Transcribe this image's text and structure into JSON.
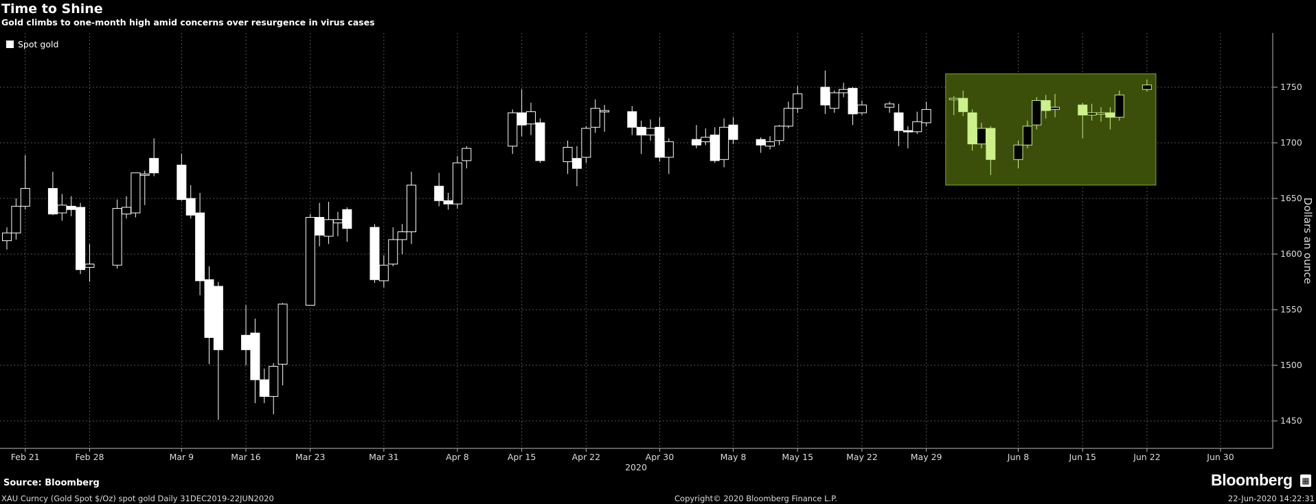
{
  "chart_data": {
    "type": "candlestick",
    "title": "Time to Shine",
    "subtitle": "Gold climbs to one-month high amid concerns over resurgence in virus cases",
    "ylabel": "Dollars an ounce",
    "ylim": [
      1425,
      1790
    ],
    "yticks": [
      1450,
      1500,
      1550,
      1600,
      1650,
      1700,
      1750
    ],
    "x_year_label": "2020",
    "x_tick_labels": [
      "Feb 21",
      "Feb 28",
      "Mar 9",
      "Mar 16",
      "Mar 23",
      "Mar 31",
      "Apr 8",
      "Apr 15",
      "Apr 22",
      "Apr 30",
      "May 8",
      "May 15",
      "May 22",
      "May 29",
      "Jun 8",
      "Jun 15",
      "Jun 22",
      "Jun 30"
    ],
    "x_tick_dates": [
      "2020-02-21",
      "2020-02-28",
      "2020-03-09",
      "2020-03-16",
      "2020-03-23",
      "2020-03-31",
      "2020-04-08",
      "2020-04-15",
      "2020-04-22",
      "2020-04-30",
      "2020-05-08",
      "2020-05-15",
      "2020-05-22",
      "2020-05-29",
      "2020-06-08",
      "2020-06-15",
      "2020-06-22",
      "2020-06-30"
    ],
    "series": [
      {
        "name": "Spot gold",
        "candles": [
          {
            "date": "2020-02-19",
            "open": 1612,
            "high": 1624,
            "low": 1604,
            "close": 1619
          },
          {
            "date": "2020-02-20",
            "open": 1619,
            "high": 1650,
            "low": 1613,
            "close": 1643
          },
          {
            "date": "2020-02-21",
            "open": 1643,
            "high": 1689,
            "low": 1640,
            "close": 1659
          },
          {
            "date": "2020-02-24",
            "open": 1659,
            "high": 1674,
            "low": 1635,
            "close": 1636
          },
          {
            "date": "2020-02-25",
            "open": 1637,
            "high": 1654,
            "low": 1630,
            "close": 1644
          },
          {
            "date": "2020-02-26",
            "open": 1643,
            "high": 1652,
            "low": 1634,
            "close": 1640
          },
          {
            "date": "2020-02-27",
            "open": 1642,
            "high": 1646,
            "low": 1582,
            "close": 1586
          },
          {
            "date": "2020-02-28",
            "open": 1588,
            "high": 1609,
            "low": 1575,
            "close": 1591
          },
          {
            "date": "2020-03-02",
            "open": 1590,
            "high": 1649,
            "low": 1587,
            "close": 1641
          },
          {
            "date": "2020-03-03",
            "open": 1636,
            "high": 1652,
            "low": 1632,
            "close": 1642
          },
          {
            "date": "2020-03-04",
            "open": 1637,
            "high": 1672,
            "low": 1633,
            "close": 1673
          },
          {
            "date": "2020-03-05",
            "open": 1672,
            "high": 1675,
            "low": 1644,
            "close": 1672
          },
          {
            "date": "2020-03-06",
            "open": 1686,
            "high": 1704,
            "low": 1670,
            "close": 1673
          },
          {
            "date": "2020-03-09",
            "open": 1680,
            "high": 1690,
            "low": 1648,
            "close": 1649
          },
          {
            "date": "2020-03-10",
            "open": 1650,
            "high": 1662,
            "low": 1632,
            "close": 1635
          },
          {
            "date": "2020-03-11",
            "open": 1637,
            "high": 1655,
            "low": 1563,
            "close": 1576
          },
          {
            "date": "2020-03-12",
            "open": 1577,
            "high": 1589,
            "low": 1501,
            "close": 1525
          },
          {
            "date": "2020-03-13",
            "open": 1571,
            "high": 1575,
            "low": 1451,
            "close": 1514
          },
          {
            "date": "2020-03-16",
            "open": 1527,
            "high": 1554,
            "low": 1500,
            "close": 1514
          },
          {
            "date": "2020-03-17",
            "open": 1529,
            "high": 1542,
            "low": 1466,
            "close": 1487
          },
          {
            "date": "2020-03-18",
            "open": 1487,
            "high": 1497,
            "low": 1466,
            "close": 1472
          },
          {
            "date": "2020-03-19",
            "open": 1472,
            "high": 1502,
            "low": 1456,
            "close": 1499
          },
          {
            "date": "2020-03-20",
            "open": 1501,
            "high": 1556,
            "low": 1482,
            "close": 1555
          },
          {
            "date": "2020-03-23",
            "open": 1554,
            "high": 1636,
            "low": 1554,
            "close": 1633
          },
          {
            "date": "2020-03-24",
            "open": 1633,
            "high": 1646,
            "low": 1607,
            "close": 1617
          },
          {
            "date": "2020-03-25",
            "open": 1616,
            "high": 1647,
            "low": 1609,
            "close": 1631
          },
          {
            "date": "2020-03-26",
            "open": 1628,
            "high": 1638,
            "low": 1616,
            "close": 1631
          },
          {
            "date": "2020-03-27",
            "open": 1640,
            "high": 1642,
            "low": 1611,
            "close": 1623
          },
          {
            "date": "2020-03-30",
            "open": 1624,
            "high": 1627,
            "low": 1574,
            "close": 1577
          },
          {
            "date": "2020-03-31",
            "open": 1576,
            "high": 1599,
            "low": 1570,
            "close": 1590
          },
          {
            "date": "2020-04-01",
            "open": 1591,
            "high": 1624,
            "low": 1589,
            "close": 1613
          },
          {
            "date": "2020-04-02",
            "open": 1613,
            "high": 1627,
            "low": 1600,
            "close": 1620
          },
          {
            "date": "2020-04-03",
            "open": 1620,
            "high": 1674,
            "low": 1609,
            "close": 1662
          },
          {
            "date": "2020-04-06",
            "open": 1661,
            "high": 1673,
            "low": 1643,
            "close": 1648
          },
          {
            "date": "2020-04-07",
            "open": 1648,
            "high": 1655,
            "low": 1640,
            "close": 1645
          },
          {
            "date": "2020-04-08",
            "open": 1645,
            "high": 1688,
            "low": 1641,
            "close": 1682
          },
          {
            "date": "2020-04-09",
            "open": 1684,
            "high": 1697,
            "low": 1677,
            "close": 1695
          },
          {
            "date": "2020-04-14",
            "open": 1697,
            "high": 1730,
            "low": 1690,
            "close": 1727
          },
          {
            "date": "2020-04-15",
            "open": 1727,
            "high": 1748,
            "low": 1706,
            "close": 1716
          },
          {
            "date": "2020-04-16",
            "open": 1717,
            "high": 1736,
            "low": 1707,
            "close": 1728
          },
          {
            "date": "2020-04-17",
            "open": 1718,
            "high": 1722,
            "low": 1682,
            "close": 1684
          },
          {
            "date": "2020-04-20",
            "open": 1683,
            "high": 1702,
            "low": 1672,
            "close": 1696
          },
          {
            "date": "2020-04-21",
            "open": 1686,
            "high": 1697,
            "low": 1661,
            "close": 1677
          },
          {
            "date": "2020-04-22",
            "open": 1687,
            "high": 1715,
            "low": 1682,
            "close": 1713
          },
          {
            "date": "2020-04-23",
            "open": 1714,
            "high": 1739,
            "low": 1709,
            "close": 1731
          },
          {
            "date": "2020-04-24",
            "open": 1729,
            "high": 1734,
            "low": 1710,
            "close": 1729
          },
          {
            "date": "2020-04-27",
            "open": 1728,
            "high": 1733,
            "low": 1707,
            "close": 1714
          },
          {
            "date": "2020-04-28",
            "open": 1714,
            "high": 1720,
            "low": 1690,
            "close": 1707
          },
          {
            "date": "2020-04-29",
            "open": 1707,
            "high": 1721,
            "low": 1702,
            "close": 1713
          },
          {
            "date": "2020-04-30",
            "open": 1714,
            "high": 1723,
            "low": 1683,
            "close": 1687
          },
          {
            "date": "2020-05-01",
            "open": 1687,
            "high": 1704,
            "low": 1672,
            "close": 1701
          },
          {
            "date": "2020-05-04",
            "open": 1703,
            "high": 1716,
            "low": 1695,
            "close": 1698
          },
          {
            "date": "2020-05-05",
            "open": 1701,
            "high": 1713,
            "low": 1698,
            "close": 1705
          },
          {
            "date": "2020-05-06",
            "open": 1707,
            "high": 1714,
            "low": 1682,
            "close": 1684
          },
          {
            "date": "2020-05-07",
            "open": 1685,
            "high": 1722,
            "low": 1678,
            "close": 1714
          },
          {
            "date": "2020-05-08",
            "open": 1716,
            "high": 1723,
            "low": 1699,
            "close": 1703
          },
          {
            "date": "2020-05-11",
            "open": 1703,
            "high": 1705,
            "low": 1691,
            "close": 1698
          },
          {
            "date": "2020-05-12",
            "open": 1697,
            "high": 1706,
            "low": 1694,
            "close": 1701
          },
          {
            "date": "2020-05-13",
            "open": 1702,
            "high": 1716,
            "low": 1698,
            "close": 1715
          },
          {
            "date": "2020-05-14",
            "open": 1715,
            "high": 1737,
            "low": 1713,
            "close": 1731
          },
          {
            "date": "2020-05-15",
            "open": 1731,
            "high": 1751,
            "low": 1727,
            "close": 1744
          },
          {
            "date": "2020-05-18",
            "open": 1750,
            "high": 1765,
            "low": 1726,
            "close": 1734
          },
          {
            "date": "2020-05-19",
            "open": 1731,
            "high": 1747,
            "low": 1727,
            "close": 1745
          },
          {
            "date": "2020-05-20",
            "open": 1745,
            "high": 1754,
            "low": 1741,
            "close": 1748
          },
          {
            "date": "2020-05-21",
            "open": 1749,
            "high": 1750,
            "low": 1716,
            "close": 1726
          },
          {
            "date": "2020-05-22",
            "open": 1727,
            "high": 1738,
            "low": 1725,
            "close": 1734
          },
          {
            "date": "2020-05-25",
            "open": 1732,
            "high": 1737,
            "low": 1727,
            "close": 1735
          },
          {
            "date": "2020-05-26",
            "open": 1727,
            "high": 1735,
            "low": 1697,
            "close": 1711
          },
          {
            "date": "2020-05-27",
            "open": 1711,
            "high": 1715,
            "low": 1695,
            "close": 1710
          },
          {
            "date": "2020-05-28",
            "open": 1710,
            "high": 1728,
            "low": 1708,
            "close": 1719
          },
          {
            "date": "2020-05-29",
            "open": 1718,
            "high": 1737,
            "low": 1715,
            "close": 1730
          },
          {
            "date": "2020-06-01",
            "open": 1739,
            "high": 1742,
            "low": 1725,
            "close": 1740
          },
          {
            "date": "2020-06-02",
            "open": 1740,
            "high": 1747,
            "low": 1724,
            "close": 1728
          },
          {
            "date": "2020-06-03",
            "open": 1727,
            "high": 1730,
            "low": 1693,
            "close": 1699
          },
          {
            "date": "2020-06-04",
            "open": 1699,
            "high": 1718,
            "low": 1695,
            "close": 1713
          },
          {
            "date": "2020-06-05",
            "open": 1713,
            "high": 1715,
            "low": 1671,
            "close": 1685
          },
          {
            "date": "2020-06-08",
            "open": 1685,
            "high": 1702,
            "low": 1677,
            "close": 1698
          },
          {
            "date": "2020-06-09",
            "open": 1698,
            "high": 1720,
            "low": 1695,
            "close": 1715
          },
          {
            "date": "2020-06-10",
            "open": 1716,
            "high": 1741,
            "low": 1712,
            "close": 1738
          },
          {
            "date": "2020-06-11",
            "open": 1738,
            "high": 1743,
            "low": 1722,
            "close": 1729
          },
          {
            "date": "2020-06-12",
            "open": 1730,
            "high": 1744,
            "low": 1723,
            "close": 1732
          },
          {
            "date": "2020-06-15",
            "open": 1734,
            "high": 1736,
            "low": 1704,
            "close": 1725
          },
          {
            "date": "2020-06-16",
            "open": 1725,
            "high": 1735,
            "low": 1720,
            "close": 1727
          },
          {
            "date": "2020-06-17",
            "open": 1727,
            "high": 1732,
            "low": 1719,
            "close": 1727
          },
          {
            "date": "2020-06-18",
            "open": 1727,
            "high": 1732,
            "low": 1712,
            "close": 1723
          },
          {
            "date": "2020-06-19",
            "open": 1723,
            "high": 1747,
            "low": 1720,
            "close": 1743
          },
          {
            "date": "2020-06-22",
            "open": 1748,
            "high": 1757,
            "low": 1746,
            "close": 1752
          }
        ]
      }
    ],
    "highlight": {
      "from": "2020-06-01",
      "to": "2020-06-22",
      "color": "#c8ff50"
    },
    "grid": true,
    "legend_position": "top-left",
    "colors": {
      "background": "#000000",
      "candle": "#ffffff",
      "highlight_candle": "#ccf08a",
      "highlight_fill": "#3c4f0a",
      "highlight_border": "#7fa61f",
      "grid": "#555555"
    }
  },
  "legend": {
    "label": "Spot gold"
  },
  "source": "Source: Bloomberg",
  "footer": {
    "left": "XAU Curncy (Gold Spot  $/Oz) spot gold  Daily 31DEC2019-22JUN2020",
    "middle": "Copyright© 2020 Bloomberg Finance L.P.",
    "right": "22-Jun-2020 14:22:31"
  },
  "brand": "Bloomberg"
}
